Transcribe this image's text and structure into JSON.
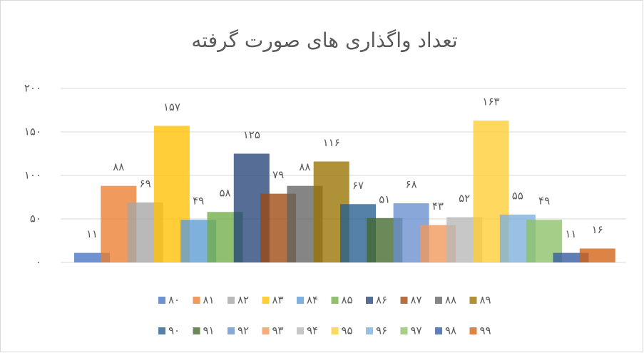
{
  "chart_data": {
    "type": "bar",
    "title": "تعداد واگذاری های صورت گرفته",
    "ylim": [
      0,
      200
    ],
    "yticks": [
      {
        "value": 0,
        "label": "۰"
      },
      {
        "value": 50,
        "label": "۵۰"
      },
      {
        "value": 100,
        "label": "۱۰۰"
      },
      {
        "value": 150,
        "label": "۱۵۰"
      },
      {
        "value": 200,
        "label": "۲۰۰"
      }
    ],
    "grid": true,
    "legend": "bottom",
    "series": [
      {
        "name": "۸۰",
        "color": "#4472c4",
        "values": [
          11
        ],
        "value_labels": [
          "۱۱"
        ]
      },
      {
        "name": "۸۱",
        "color": "#ed7d31",
        "values": [
          88
        ],
        "value_labels": [
          "۸۸"
        ]
      },
      {
        "name": "۸۲",
        "color": "#a5a5a5",
        "values": [
          69
        ],
        "value_labels": [
          "۶۹"
        ]
      },
      {
        "name": "۸۳",
        "color": "#ffc000",
        "values": [
          157
        ],
        "value_labels": [
          "۱۵۷"
        ]
      },
      {
        "name": "۸۴",
        "color": "#5b9bd5",
        "values": [
          49
        ],
        "value_labels": [
          "۴۹"
        ]
      },
      {
        "name": "۸۵",
        "color": "#70ad47",
        "values": [
          58
        ],
        "value_labels": [
          "۵۸"
        ]
      },
      {
        "name": "۸۶",
        "color": "#264478",
        "values": [
          125
        ],
        "value_labels": [
          "۱۲۵"
        ]
      },
      {
        "name": "۸۷",
        "color": "#9e480e",
        "values": [
          79
        ],
        "value_labels": [
          "۷۹"
        ]
      },
      {
        "name": "۸۸",
        "color": "#636363",
        "values": [
          88
        ],
        "value_labels": [
          "۸۸"
        ]
      },
      {
        "name": "۸۹",
        "color": "#997300",
        "values": [
          116
        ],
        "value_labels": [
          "۱۱۶"
        ]
      },
      {
        "name": "۹۰",
        "color": "#255e91",
        "values": [
          67
        ],
        "value_labels": [
          "۶۷"
        ]
      },
      {
        "name": "۹۱",
        "color": "#43682b",
        "values": [
          51
        ],
        "value_labels": [
          "۵۱"
        ]
      },
      {
        "name": "۹۲",
        "color": "#698ed0",
        "values": [
          68
        ],
        "value_labels": [
          "۶۸"
        ]
      },
      {
        "name": "۹۳",
        "color": "#f1975a",
        "values": [
          43
        ],
        "value_labels": [
          "۴۳"
        ]
      },
      {
        "name": "۹۴",
        "color": "#b7b7b7",
        "values": [
          52
        ],
        "value_labels": [
          "۵۲"
        ]
      },
      {
        "name": "۹۵",
        "color": "#ffcd33",
        "values": [
          163
        ],
        "value_labels": [
          "۱۶۳"
        ]
      },
      {
        "name": "۹۶",
        "color": "#7cafdd",
        "values": [
          55
        ],
        "value_labels": [
          "۵۵"
        ]
      },
      {
        "name": "۹۷",
        "color": "#8cc168",
        "values": [
          49
        ],
        "value_labels": [
          "۴۹"
        ]
      },
      {
        "name": "۹۸",
        "color": "#335aa1",
        "values": [
          11
        ],
        "value_labels": [
          "۱۱"
        ]
      },
      {
        "name": "۹۹",
        "color": "#d26012",
        "values": [
          16
        ],
        "value_labels": [
          "۱۶"
        ]
      }
    ]
  }
}
